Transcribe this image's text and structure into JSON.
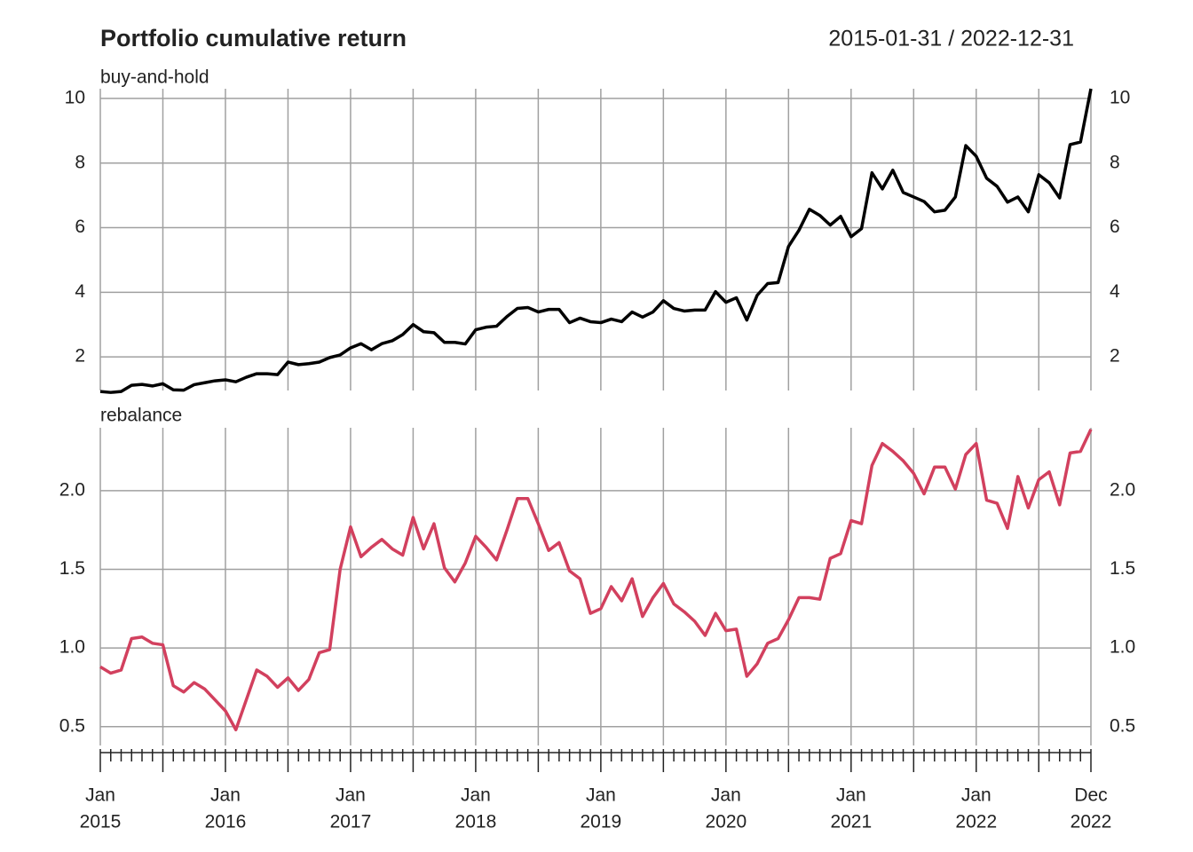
{
  "chart_data": {
    "type": "line",
    "title": "Portfolio cumulative return",
    "subtitle": "2015-01-31 / 2022-12-31",
    "x": [
      "2015-01",
      "2015-02",
      "2015-03",
      "2015-04",
      "2015-05",
      "2015-06",
      "2015-07",
      "2015-08",
      "2015-09",
      "2015-10",
      "2015-11",
      "2015-12",
      "2016-01",
      "2016-02",
      "2016-03",
      "2016-04",
      "2016-05",
      "2016-06",
      "2016-07",
      "2016-08",
      "2016-09",
      "2016-10",
      "2016-11",
      "2016-12",
      "2017-01",
      "2017-02",
      "2017-03",
      "2017-04",
      "2017-05",
      "2017-06",
      "2017-07",
      "2017-08",
      "2017-09",
      "2017-10",
      "2017-11",
      "2017-12",
      "2018-01",
      "2018-02",
      "2018-03",
      "2018-04",
      "2018-05",
      "2018-06",
      "2018-07",
      "2018-08",
      "2018-09",
      "2018-10",
      "2018-11",
      "2018-12",
      "2019-01",
      "2019-02",
      "2019-03",
      "2019-04",
      "2019-05",
      "2019-06",
      "2019-07",
      "2019-08",
      "2019-09",
      "2019-10",
      "2019-11",
      "2019-12",
      "2020-01",
      "2020-02",
      "2020-03",
      "2020-04",
      "2020-05",
      "2020-06",
      "2020-07",
      "2020-08",
      "2020-09",
      "2020-10",
      "2020-11",
      "2020-12",
      "2021-01",
      "2021-02",
      "2021-03",
      "2021-04",
      "2021-05",
      "2021-06",
      "2021-07",
      "2021-08",
      "2021-09",
      "2021-10",
      "2021-11",
      "2021-12",
      "2022-01",
      "2022-02",
      "2022-03",
      "2022-04",
      "2022-05",
      "2022-06",
      "2022-07",
      "2022-08",
      "2022-09",
      "2022-10",
      "2022-11",
      "2022-12"
    ],
    "xticks": [
      {
        "value": "2015-01",
        "label": [
          "Jan",
          "2015"
        ]
      },
      {
        "value": "2016-01",
        "label": [
          "Jan",
          "2016"
        ]
      },
      {
        "value": "2017-01",
        "label": [
          "Jan",
          "2017"
        ]
      },
      {
        "value": "2018-01",
        "label": [
          "Jan",
          "2018"
        ]
      },
      {
        "value": "2019-01",
        "label": [
          "Jan",
          "2019"
        ]
      },
      {
        "value": "2020-01",
        "label": [
          "Jan",
          "2020"
        ]
      },
      {
        "value": "2021-01",
        "label": [
          "Jan",
          "2021"
        ]
      },
      {
        "value": "2022-01",
        "label": [
          "Jan",
          "2022"
        ]
      },
      {
        "value": "2022-12",
        "label": [
          "Dec",
          "2022"
        ]
      }
    ],
    "grid": true,
    "series": [
      {
        "name": "buy-and-hold",
        "color": "#000000",
        "ylim": [
          0.96,
          10.3
        ],
        "yticks": [
          2,
          4,
          6,
          8,
          10
        ],
        "values": [
          0.93,
          0.9,
          0.93,
          1.12,
          1.15,
          1.1,
          1.17,
          0.98,
          0.97,
          1.14,
          1.2,
          1.26,
          1.29,
          1.23,
          1.37,
          1.48,
          1.48,
          1.45,
          1.84,
          1.76,
          1.79,
          1.84,
          1.98,
          2.06,
          2.28,
          2.41,
          2.22,
          2.41,
          2.5,
          2.69,
          3.0,
          2.78,
          2.75,
          2.45,
          2.45,
          2.4,
          2.84,
          2.92,
          2.95,
          3.25,
          3.5,
          3.53,
          3.39,
          3.47,
          3.47,
          3.06,
          3.2,
          3.09,
          3.06,
          3.17,
          3.09,
          3.39,
          3.23,
          3.39,
          3.74,
          3.5,
          3.42,
          3.45,
          3.45,
          4.02,
          3.69,
          3.83,
          3.14,
          3.91,
          4.27,
          4.3,
          5.42,
          5.92,
          6.57,
          6.38,
          6.08,
          6.35,
          5.72,
          5.97,
          7.7,
          7.2,
          7.78,
          7.09,
          6.95,
          6.81,
          6.49,
          6.54,
          6.95,
          8.54,
          8.21,
          7.53,
          7.28,
          6.79,
          6.95,
          6.49,
          7.64,
          7.39,
          6.92,
          8.57,
          8.65,
          10.3
        ]
      },
      {
        "name": "rebalance",
        "color": "#d2405e",
        "ylim": [
          0.38,
          2.4
        ],
        "yticks": [
          0.5,
          {
            "value": 1,
            "label": "1.0"
          },
          1.5,
          {
            "value": 2,
            "label": "2.0"
          }
        ],
        "values": [
          0.88,
          0.84,
          0.86,
          1.06,
          1.07,
          1.03,
          1.02,
          0.76,
          0.72,
          0.78,
          0.74,
          0.67,
          0.6,
          0.48,
          0.67,
          0.86,
          0.82,
          0.75,
          0.81,
          0.73,
          0.8,
          0.97,
          0.99,
          1.5,
          1.77,
          1.58,
          1.64,
          1.69,
          1.63,
          1.59,
          1.83,
          1.63,
          1.79,
          1.51,
          1.42,
          1.54,
          1.71,
          1.64,
          1.56,
          1.75,
          1.95,
          1.95,
          1.79,
          1.62,
          1.67,
          1.49,
          1.44,
          1.22,
          1.25,
          1.39,
          1.3,
          1.44,
          1.2,
          1.32,
          1.41,
          1.28,
          1.23,
          1.17,
          1.08,
          1.22,
          1.11,
          1.12,
          0.82,
          0.9,
          1.03,
          1.06,
          1.18,
          1.32,
          1.32,
          1.31,
          1.57,
          1.6,
          1.81,
          1.79,
          2.16,
          2.3,
          2.25,
          2.19,
          2.11,
          1.98,
          2.15,
          2.15,
          2.01,
          2.23,
          2.3,
          1.94,
          1.92,
          1.76,
          2.09,
          1.89,
          2.07,
          2.12,
          1.91,
          2.24,
          2.25,
          2.39
        ]
      }
    ]
  }
}
